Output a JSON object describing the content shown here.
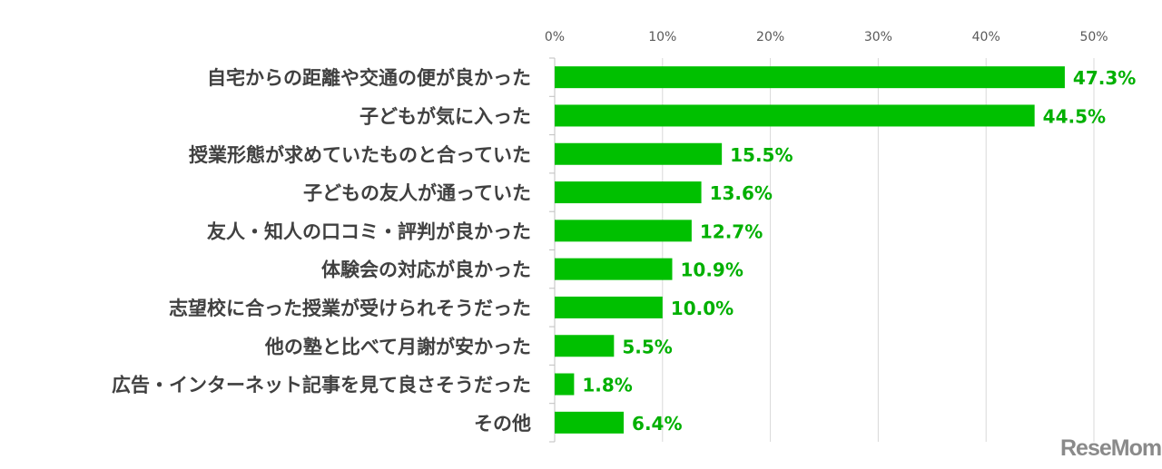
{
  "chart_data": {
    "type": "bar",
    "orientation": "horizontal",
    "categories": [
      "自宅からの距離や交通の便が良かった",
      "子どもが気に入った",
      "授業形態が求めていたものと合っていた",
      "子どもの友人が通っていた",
      "友人・知人の口コミ・評判が良かった",
      "体験会の対応が良かった",
      "志望校に合った授業が受けられそうだった",
      "他の塾と比べて月謝が安かった",
      "広告・インターネット記事を見て良さそうだった",
      "その他"
    ],
    "values": [
      47.3,
      44.5,
      15.5,
      13.6,
      12.7,
      10.9,
      10.0,
      5.5,
      1.8,
      6.4
    ],
    "value_labels": [
      "47.3%",
      "44.5%",
      "15.5%",
      "13.6%",
      "12.7%",
      "10.9%",
      "10.0%",
      "5.5%",
      "1.8%",
      "6.4%"
    ],
    "xlim": [
      0,
      50
    ],
    "x_ticks": [
      "0%",
      "10%",
      "20%",
      "30%",
      "40%",
      "50%"
    ],
    "x_axis_position": "top",
    "grid": true,
    "bar_color": "#00c000",
    "label_color": "#00b000"
  },
  "watermark": "ReseMom"
}
